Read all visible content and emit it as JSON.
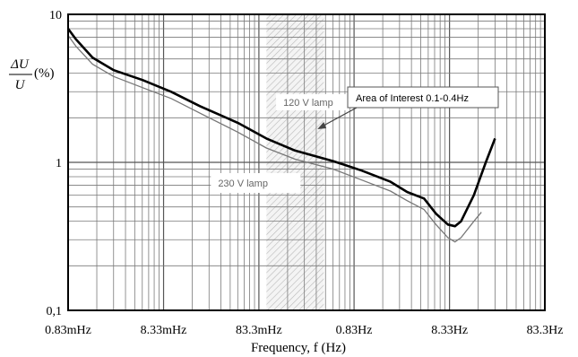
{
  "chart_data": {
    "type": "line",
    "title": "",
    "xlabel": "Frequency, f (Hz)",
    "ylabel": {
      "numerator": "ΔU",
      "denominator": "U",
      "unit": "(%)"
    },
    "x_scale": "log",
    "y_scale": "log",
    "xlim_hz": [
      0.00083,
      83.3
    ],
    "ylim": [
      0.1,
      10
    ],
    "grid": true,
    "x_ticks": [
      {
        "value": 0.00083,
        "label": "0.83mHz"
      },
      {
        "value": 0.00833,
        "label": "8.33mHz"
      },
      {
        "value": 0.0833,
        "label": "83.3mHz"
      },
      {
        "value": 0.83,
        "label": "0.83Hz"
      },
      {
        "value": 8.33,
        "label": "8.33Hz"
      },
      {
        "value": 83.3,
        "label": "83.3Hz"
      }
    ],
    "y_ticks": [
      {
        "value": 10,
        "label": "10"
      },
      {
        "value": 1,
        "label": "1"
      },
      {
        "value": 0.1,
        "label": "0,1"
      }
    ],
    "highlight_band": {
      "from_hz": 0.1,
      "to_hz": 0.4
    },
    "annotations": [
      {
        "text": "Area of Interest 0.1-0.4Hz",
        "points_to_hz": 0.35
      }
    ],
    "series": [
      {
        "name": "120 V lamp",
        "color": "#000000",
        "label_at_hz": 0.15,
        "points": [
          [
            0.00083,
            8.0
          ],
          [
            0.001,
            6.8
          ],
          [
            0.0015,
            5.1
          ],
          [
            0.0025,
            4.2
          ],
          [
            0.005,
            3.6
          ],
          [
            0.01,
            3.0
          ],
          [
            0.02,
            2.4
          ],
          [
            0.05,
            1.85
          ],
          [
            0.1,
            1.45
          ],
          [
            0.2,
            1.2
          ],
          [
            0.5,
            1.02
          ],
          [
            1.0,
            0.88
          ],
          [
            2.0,
            0.74
          ],
          [
            3.0,
            0.63
          ],
          [
            4.5,
            0.57
          ],
          [
            6.0,
            0.45
          ],
          [
            8.0,
            0.38
          ],
          [
            9.5,
            0.37
          ],
          [
            11,
            0.4
          ],
          [
            15,
            0.6
          ],
          [
            20,
            1.0
          ],
          [
            25,
            1.45
          ]
        ]
      },
      {
        "name": "230 V lamp",
        "color": "#777777",
        "label_at_hz": 0.05,
        "points": [
          [
            0.00083,
            7.2
          ],
          [
            0.001,
            6.1
          ],
          [
            0.0015,
            4.6
          ],
          [
            0.0025,
            3.8
          ],
          [
            0.005,
            3.2
          ],
          [
            0.01,
            2.7
          ],
          [
            0.02,
            2.15
          ],
          [
            0.05,
            1.6
          ],
          [
            0.1,
            1.25
          ],
          [
            0.2,
            1.05
          ],
          [
            0.5,
            0.9
          ],
          [
            1.0,
            0.76
          ],
          [
            2.0,
            0.64
          ],
          [
            3.0,
            0.55
          ],
          [
            4.5,
            0.48
          ],
          [
            6.0,
            0.38
          ],
          [
            8.0,
            0.31
          ],
          [
            9.5,
            0.29
          ],
          [
            11,
            0.31
          ],
          [
            15,
            0.4
          ],
          [
            18,
            0.46
          ]
        ]
      }
    ]
  }
}
